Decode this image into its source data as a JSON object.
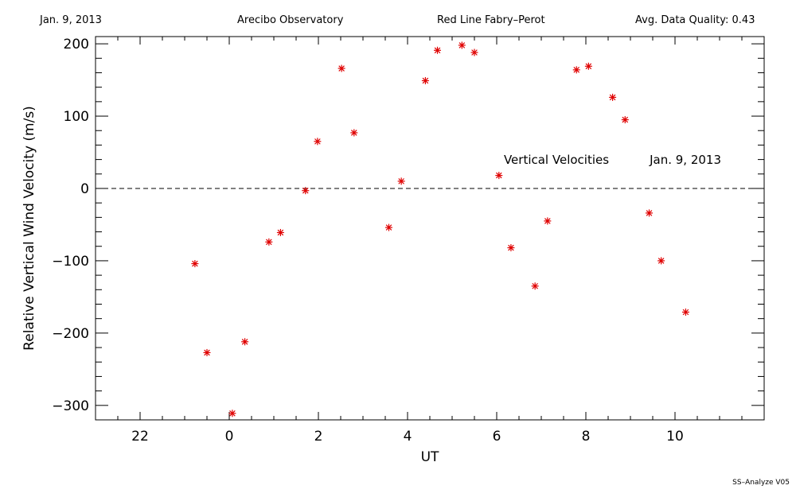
{
  "header": {
    "date": "Jan. 9, 2013",
    "observatory": "Arecibo Observatory",
    "instrument": "Red Line Fabry–Perot",
    "quality": "Avg. Data Quality: 0.43"
  },
  "footer": "SS–Analyze V05",
  "colors": {
    "marker": "#e00000",
    "axis": "#000000"
  },
  "chart_data": {
    "type": "scatter",
    "title": "",
    "xlabel": "UT",
    "ylabel": "Relative Vertical Wind Velocity (m/s)",
    "xlim": [
      21.0,
      36.0
    ],
    "ylim": [
      -320,
      210
    ],
    "x_ticks": [
      22,
      24,
      26,
      28,
      30,
      32,
      34
    ],
    "x_tick_labels": [
      "22",
      "0",
      "2",
      "4",
      "6",
      "8",
      "10"
    ],
    "y_ticks": [
      -300,
      -200,
      -100,
      0,
      100,
      200
    ],
    "y_tick_labels": [
      "−300",
      "−200",
      "−100",
      "0",
      "100",
      "200"
    ],
    "zero_line": "dashed",
    "annotations": [
      {
        "text": "Vertical Velocities",
        "x": 30.16,
        "y": 34
      },
      {
        "text": "Jan. 9, 2013",
        "x": 33.43,
        "y": 34
      }
    ],
    "series": [
      {
        "marker": "asterisk",
        "x": [
          23.23,
          23.5,
          24.07,
          24.35,
          24.89,
          25.15,
          25.71,
          25.98,
          26.52,
          26.8,
          27.58,
          27.86,
          28.4,
          28.67,
          29.22,
          29.5,
          30.05,
          30.32,
          30.86,
          31.14,
          31.79,
          32.06,
          32.6,
          32.88,
          33.42,
          33.69,
          34.24
        ],
        "y": [
          -104,
          -227,
          -311,
          -212,
          -74,
          -61,
          -3,
          65,
          166,
          77,
          -54,
          10,
          149,
          191,
          198,
          188,
          18,
          -82,
          -135,
          -45,
          164,
          169,
          126,
          95,
          -34,
          -100,
          -171
        ]
      }
    ]
  }
}
